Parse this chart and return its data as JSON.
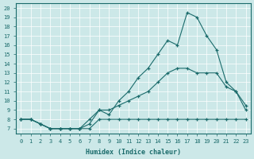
{
  "xlabel": "Humidex (Indice chaleur)",
  "bg_color": "#cce8e8",
  "line_color": "#1a6b6b",
  "xlim": [
    -0.5,
    23.5
  ],
  "ylim": [
    6.5,
    20.5
  ],
  "xticks": [
    0,
    1,
    2,
    3,
    4,
    5,
    6,
    7,
    8,
    9,
    10,
    11,
    12,
    13,
    14,
    15,
    16,
    17,
    18,
    19,
    20,
    21,
    22,
    23
  ],
  "yticks": [
    7,
    8,
    9,
    10,
    11,
    12,
    13,
    14,
    15,
    16,
    17,
    18,
    19,
    20
  ],
  "line1_x": [
    0,
    1,
    2,
    3,
    4,
    5,
    6,
    7,
    8,
    9,
    10,
    11,
    12,
    13,
    14,
    15,
    16,
    17,
    18,
    19,
    20,
    21,
    22,
    23
  ],
  "line1_y": [
    8,
    8,
    7.5,
    7,
    7,
    7,
    7,
    7,
    8,
    8,
    8,
    8,
    8,
    8,
    8,
    8,
    8,
    8,
    8,
    8,
    8,
    8,
    8,
    8
  ],
  "line2_x": [
    0,
    1,
    2,
    3,
    4,
    5,
    6,
    7,
    8,
    9,
    10,
    11,
    12,
    13,
    14,
    15,
    16,
    17,
    18,
    19,
    20,
    21,
    22,
    23
  ],
  "line2_y": [
    8,
    8,
    7.5,
    7,
    7,
    7,
    7,
    8,
    9,
    9,
    9.5,
    10,
    10.5,
    11,
    12,
    13,
    13.5,
    13.5,
    13,
    13,
    13,
    11.5,
    11,
    9
  ],
  "line3_x": [
    0,
    1,
    2,
    3,
    4,
    5,
    6,
    7,
    8,
    9,
    10,
    11,
    12,
    13,
    14,
    15,
    16,
    17,
    18,
    19,
    20,
    21,
    22,
    23
  ],
  "line3_y": [
    8,
    8,
    7.5,
    7,
    7,
    7,
    7,
    7.5,
    9,
    8.5,
    10,
    11,
    12.5,
    13.5,
    15,
    16.5,
    16,
    19.5,
    19,
    17,
    15.5,
    12,
    11,
    9.5
  ]
}
